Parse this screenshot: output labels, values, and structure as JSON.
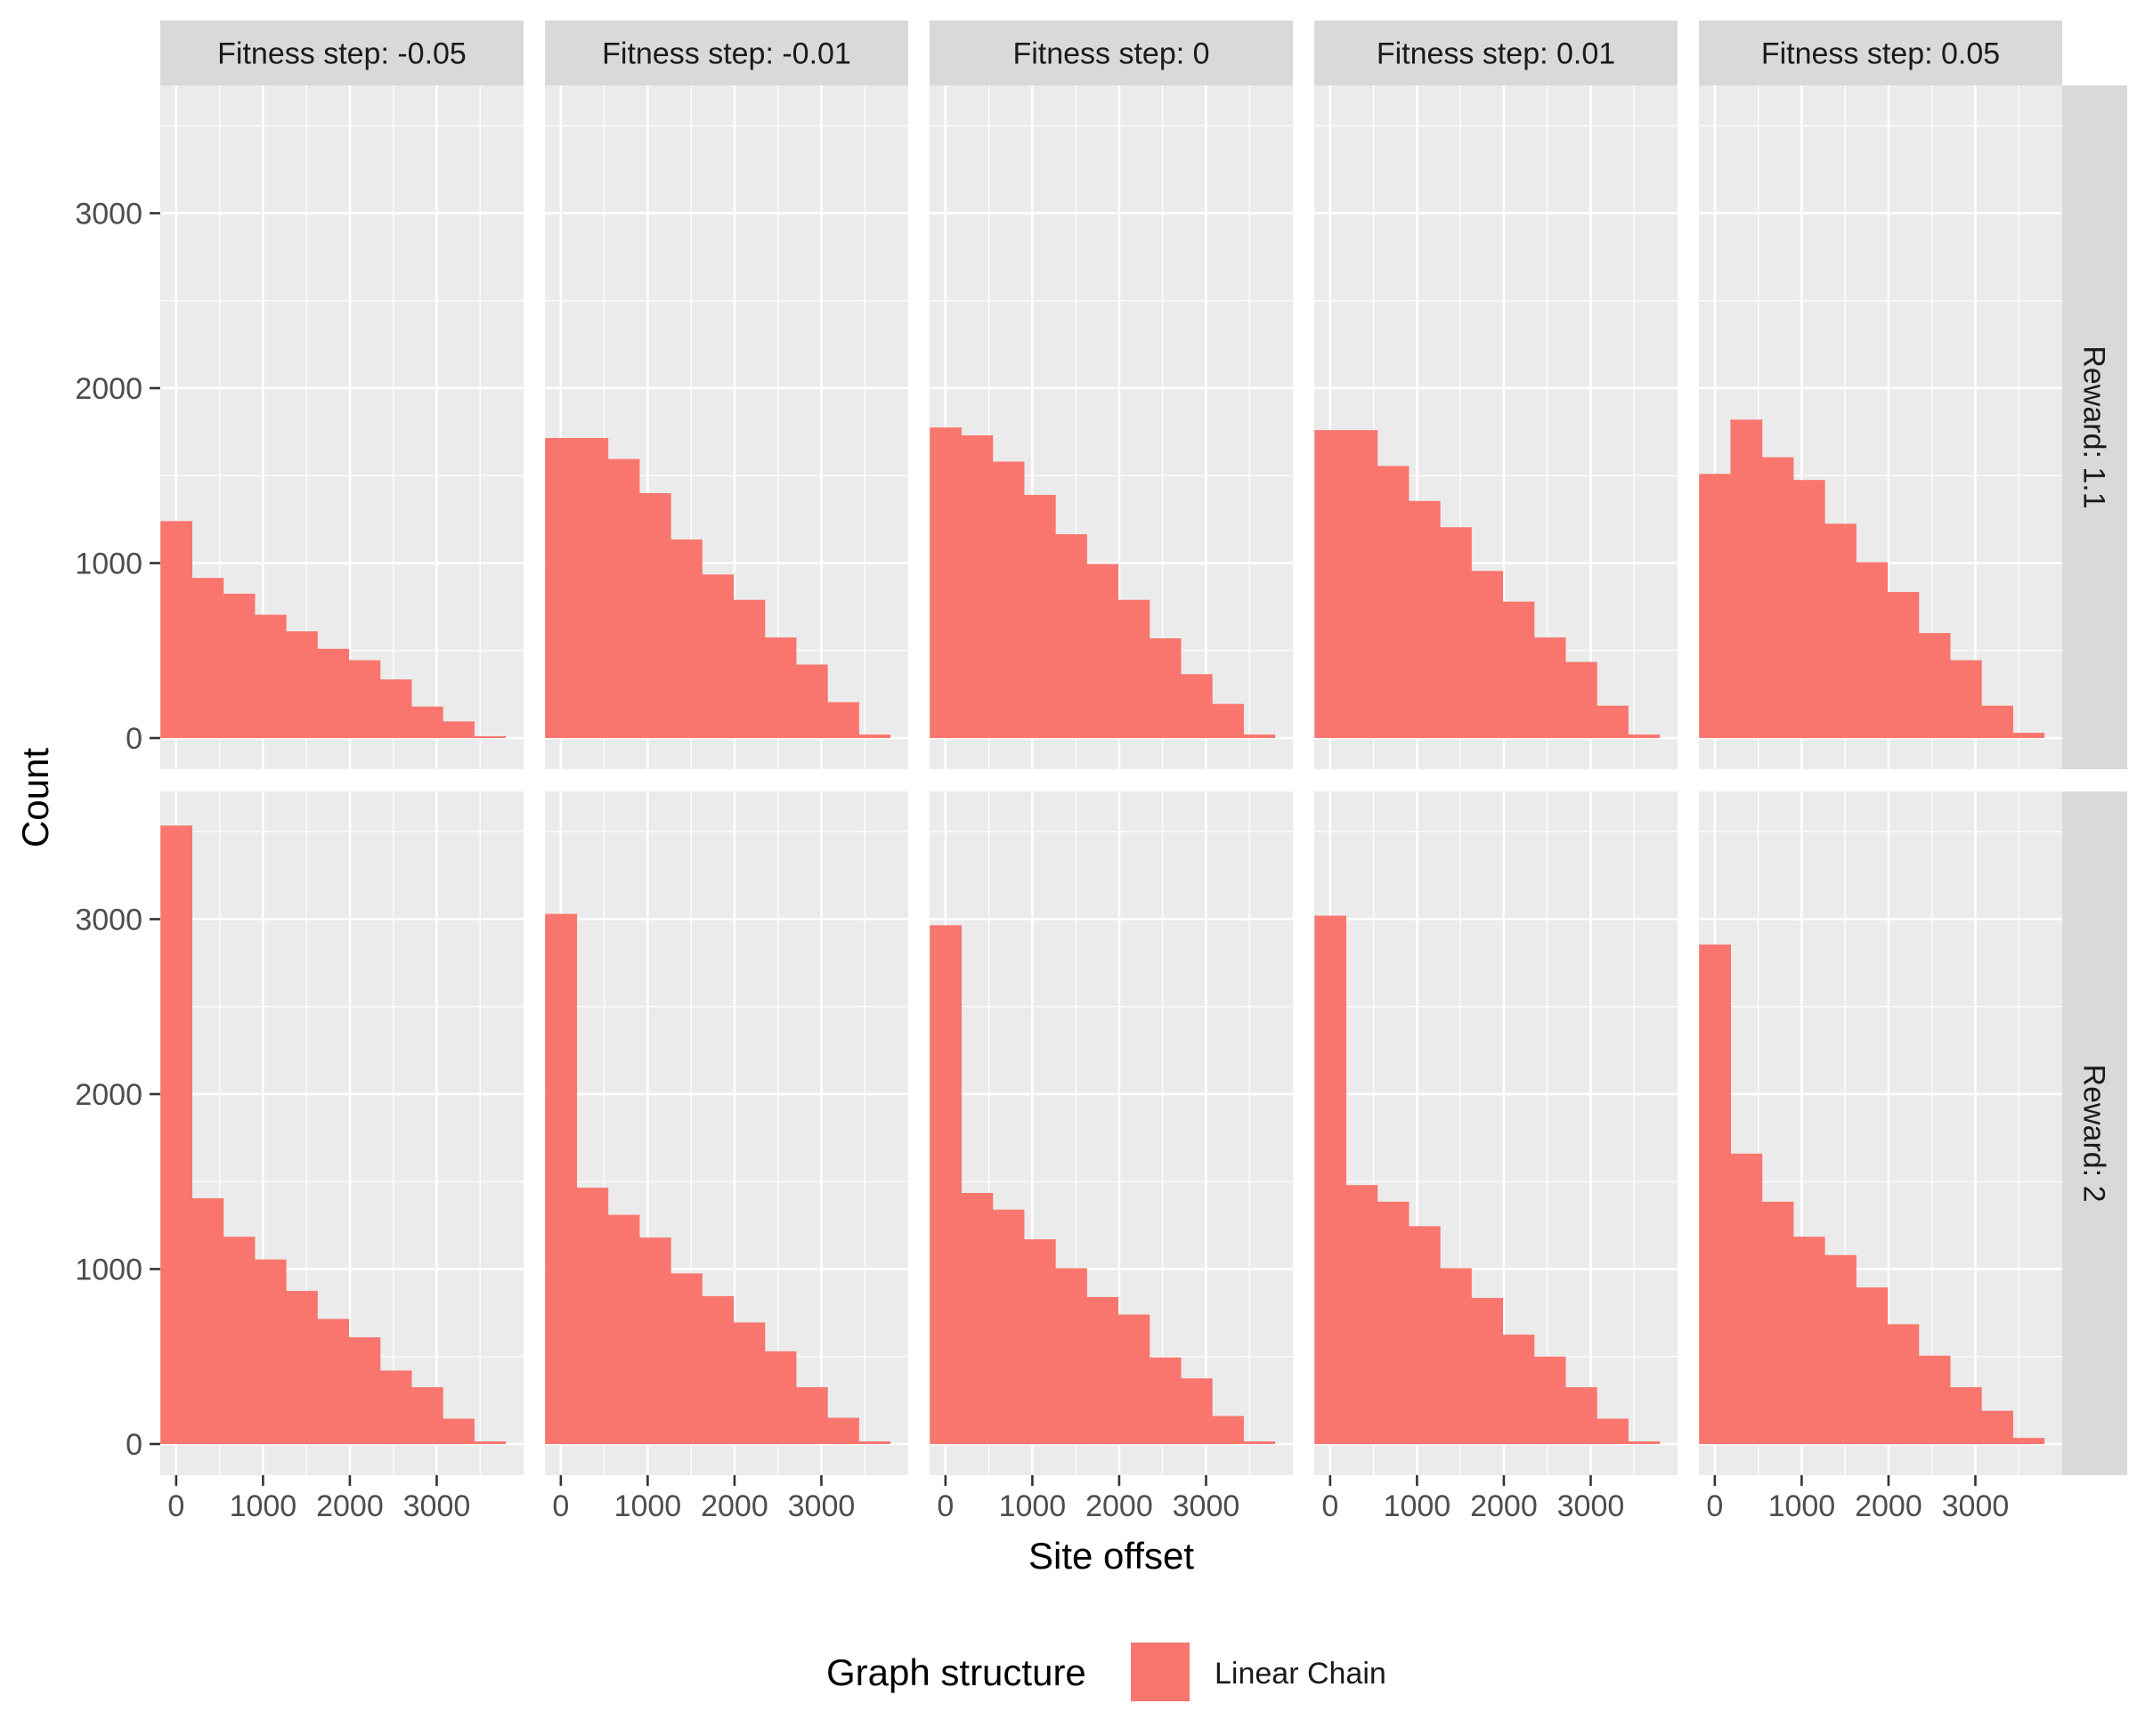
{
  "chart_data": {
    "type": "bar",
    "facet_cols": [
      "Fitness step: -0.05",
      "Fitness step: -0.01",
      "Fitness step: 0",
      "Fitness step: 0.01",
      "Fitness step: 0.05"
    ],
    "facet_rows": [
      "Reward: 1.1",
      "Reward: 2"
    ],
    "xlabel": "Site offset",
    "ylabel": "Count",
    "xlim": [
      -183,
      4000
    ],
    "ylim": [
      -178,
      3730
    ],
    "x_ticks": [
      0,
      1000,
      2000,
      3000
    ],
    "y_ticks": [
      0,
      1000,
      2000,
      3000
    ],
    "grid": true,
    "legend": {
      "title": "Graph structure",
      "position": "bottom",
      "entries": [
        {
          "label": "Linear Chain",
          "color": "#f8766d"
        }
      ]
    },
    "bin_edges": [
      -181,
      180,
      541,
      902,
      1263,
      1624,
      1985,
      2346,
      2707,
      3068,
      3429,
      3790
    ],
    "panels": [
      {
        "row": "Reward: 1.1",
        "col": "Fitness step: -0.05",
        "values": [
          1240,
          915,
          825,
          705,
          610,
          510,
          445,
          335,
          180,
          95,
          10
        ]
      },
      {
        "row": "Reward: 1.1",
        "col": "Fitness step: -0.01",
        "values": [
          1715,
          1715,
          1595,
          1400,
          1135,
          935,
          790,
          575,
          420,
          205,
          20
        ]
      },
      {
        "row": "Reward: 1.1",
        "col": "Fitness step: 0",
        "values": [
          1775,
          1730,
          1580,
          1390,
          1165,
          995,
          790,
          570,
          365,
          195,
          20
        ]
      },
      {
        "row": "Reward: 1.1",
        "col": "Fitness step: 0.01",
        "values": [
          1760,
          1760,
          1555,
          1355,
          1205,
          955,
          780,
          575,
          435,
          185,
          20
        ]
      },
      {
        "row": "Reward: 1.1",
        "col": "Fitness step: 0.05",
        "values": [
          1510,
          1820,
          1605,
          1475,
          1225,
          1005,
          835,
          600,
          445,
          185,
          30
        ]
      },
      {
        "row": "Reward: 2",
        "col": "Fitness step: -0.05",
        "values": [
          3535,
          1405,
          1185,
          1055,
          875,
          715,
          610,
          420,
          325,
          145,
          15
        ]
      },
      {
        "row": "Reward: 2",
        "col": "Fitness step: -0.01",
        "values": [
          3030,
          1465,
          1310,
          1180,
          975,
          845,
          695,
          530,
          325,
          150,
          15
        ]
      },
      {
        "row": "Reward: 2",
        "col": "Fitness step: 0",
        "values": [
          2965,
          1435,
          1340,
          1170,
          1005,
          840,
          740,
          495,
          375,
          160,
          15
        ]
      },
      {
        "row": "Reward: 2",
        "col": "Fitness step: 0.01",
        "values": [
          3020,
          1480,
          1385,
          1245,
          1005,
          835,
          625,
          500,
          325,
          145,
          15
        ]
      },
      {
        "row": "Reward: 2",
        "col": "Fitness step: 0.05",
        "values": [
          2855,
          1660,
          1385,
          1185,
          1080,
          895,
          685,
          505,
          325,
          190,
          35
        ]
      }
    ]
  },
  "colors": {
    "bar": "#f8766d",
    "panel_bg": "#ebebeb",
    "strip_bg": "#d9d9d9",
    "grid": "#ffffff",
    "text": "#1a1a1a",
    "tick_text": "#4d4d4d"
  }
}
